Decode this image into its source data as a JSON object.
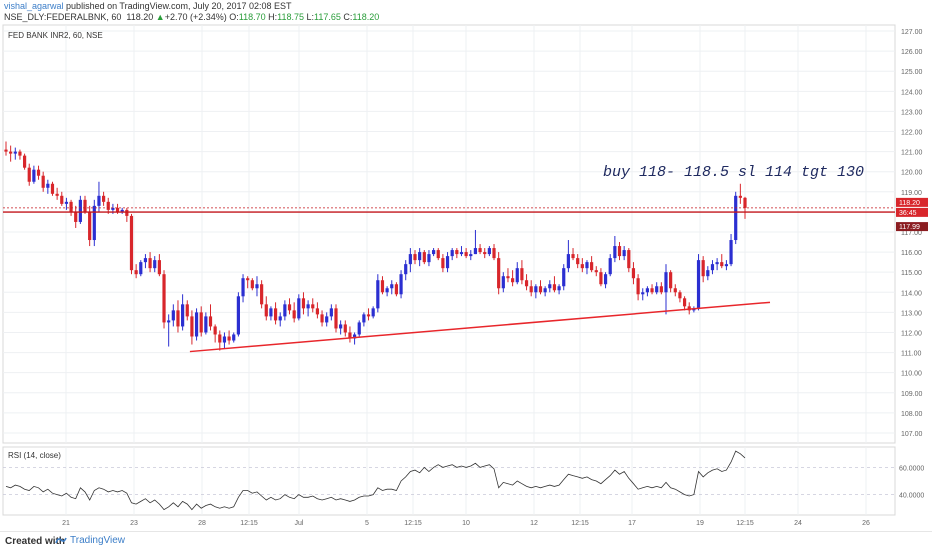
{
  "header": {
    "publisher_user": "vishal_agarwal",
    "published_text": " published on TradingView.com, July 20, 2017 02:08 EST",
    "symbol_line": "NSE_DLY:FEDERALBNK, 60",
    "last_price": "118.20",
    "change_arrow": "▲",
    "change": "+2.70 (+2.34%)",
    "o_label": "O:",
    "o_value": "118.70",
    "h_label": "H:",
    "h_value": "118.75",
    "l_label": "L:",
    "l_value": "117.65",
    "c_label": "C:",
    "c_value": "118.20"
  },
  "footer": {
    "created_with": "Created with",
    "brand": "TradingView"
  },
  "colors": {
    "up": "#2b2fd1",
    "down": "#d8262b",
    "trendline": "#e8262b",
    "resistance": "#c4161c",
    "rsi_line": "#333333",
    "grid": "#eef0f3",
    "price_badge": "#d8262b",
    "price_badge_dark": "#8b1d21"
  },
  "chart_data": [
    {
      "type": "candlestick",
      "title": "FED BANK INR2, 60, NSE",
      "annotation": "buy 118- 118.5 sl 114 tgt 130",
      "ylim": [
        106.5,
        127.3
      ],
      "y_ticks": [
        "127.00",
        "126.00",
        "125.00",
        "124.00",
        "123.00",
        "122.00",
        "121.00",
        "120.00",
        "119.00",
        "118.00",
        "117.00",
        "116.00",
        "115.00",
        "114.00",
        "113.00",
        "112.00",
        "111.00",
        "110.00",
        "109.00",
        "108.00",
        "107.00"
      ],
      "x_ticks": [
        "21",
        "23",
        "28",
        "12:15",
        "Jul",
        "5",
        "12:15",
        "10",
        "12",
        "12:15",
        "17",
        "19",
        "12:15",
        "24",
        "26"
      ],
      "price_labels": {
        "last": "118.20",
        "countdown": "36:45",
        "level": "117.99"
      },
      "lines": {
        "resistance": [
          117.99,
          118.2
        ],
        "support_trendline": {
          "from_index": 0,
          "from_price": 111.05,
          "to_index": 1,
          "to_price": 113.5
        }
      },
      "ohlc": [
        [
          121.1,
          121.5,
          120.8,
          121.0
        ],
        [
          121.0,
          121.3,
          120.5,
          120.9
        ],
        [
          120.9,
          121.2,
          120.6,
          121.0
        ],
        [
          121.0,
          121.1,
          120.6,
          120.8
        ],
        [
          120.8,
          120.9,
          120.1,
          120.2
        ],
        [
          120.2,
          120.4,
          119.3,
          119.5
        ],
        [
          119.5,
          120.3,
          119.4,
          120.1
        ],
        [
          120.1,
          120.3,
          119.6,
          119.8
        ],
        [
          119.8,
          120.0,
          119.0,
          119.2
        ],
        [
          119.2,
          119.6,
          118.9,
          119.4
        ],
        [
          119.4,
          119.5,
          118.8,
          118.9
        ],
        [
          118.9,
          119.2,
          118.6,
          118.8
        ],
        [
          118.8,
          119.0,
          118.3,
          118.4
        ],
        [
          118.4,
          118.7,
          118.1,
          118.5
        ],
        [
          118.5,
          118.6,
          117.8,
          118.0
        ],
        [
          118.0,
          118.3,
          117.2,
          117.5
        ],
        [
          117.5,
          118.8,
          117.4,
          118.6
        ],
        [
          118.6,
          118.8,
          117.9,
          118.0
        ],
        [
          118.0,
          118.3,
          116.3,
          116.6
        ],
        [
          116.6,
          118.6,
          116.3,
          118.3
        ],
        [
          118.3,
          119.5,
          118.0,
          118.8
        ],
        [
          118.8,
          119.0,
          118.3,
          118.5
        ],
        [
          118.5,
          118.7,
          117.9,
          118.1
        ],
        [
          118.1,
          118.4,
          117.9,
          118.2
        ],
        [
          118.2,
          118.4,
          117.9,
          118.0
        ],
        [
          118.0,
          118.2,
          117.9,
          118.1
        ],
        [
          118.1,
          118.2,
          117.5,
          117.8
        ],
        [
          117.8,
          117.9,
          114.9,
          115.1
        ],
        [
          115.1,
          115.4,
          114.7,
          114.9
        ],
        [
          114.9,
          115.6,
          114.8,
          115.5
        ],
        [
          115.5,
          115.9,
          115.2,
          115.7
        ],
        [
          115.7,
          116.0,
          115.0,
          115.2
        ],
        [
          115.2,
          115.8,
          115.0,
          115.6
        ],
        [
          115.6,
          115.9,
          114.8,
          114.9
        ],
        [
          114.9,
          115.1,
          112.2,
          112.5
        ],
        [
          112.5,
          112.9,
          111.3,
          112.6
        ],
        [
          112.6,
          113.4,
          112.3,
          113.1
        ],
        [
          113.1,
          113.6,
          112.0,
          112.3
        ],
        [
          112.3,
          113.9,
          112.1,
          113.4
        ],
        [
          113.4,
          113.6,
          112.6,
          112.8
        ],
        [
          112.8,
          113.1,
          111.4,
          111.8
        ],
        [
          111.8,
          113.2,
          111.6,
          113.0
        ],
        [
          113.0,
          113.3,
          111.8,
          112.0
        ],
        [
          112.0,
          113.0,
          111.9,
          112.8
        ],
        [
          112.8,
          113.4,
          112.1,
          112.3
        ],
        [
          112.3,
          112.4,
          111.5,
          111.9
        ],
        [
          111.9,
          112.1,
          111.1,
          111.5
        ],
        [
          111.5,
          112.0,
          111.2,
          111.8
        ],
        [
          111.8,
          112.1,
          111.4,
          111.6
        ],
        [
          111.6,
          112.0,
          111.5,
          111.9
        ],
        [
          111.9,
          114.0,
          111.8,
          113.8
        ],
        [
          113.8,
          114.9,
          113.5,
          114.7
        ],
        [
          114.7,
          114.8,
          114.2,
          114.6
        ],
        [
          114.6,
          114.7,
          114.1,
          114.2
        ],
        [
          114.2,
          114.8,
          113.8,
          114.4
        ],
        [
          114.4,
          114.6,
          113.2,
          113.4
        ],
        [
          113.4,
          113.8,
          112.6,
          112.8
        ],
        [
          112.8,
          113.3,
          112.6,
          113.2
        ],
        [
          113.2,
          113.5,
          112.4,
          112.6
        ],
        [
          112.6,
          113.0,
          112.3,
          112.8
        ],
        [
          112.8,
          113.6,
          112.6,
          113.4
        ],
        [
          113.4,
          113.7,
          112.9,
          113.1
        ],
        [
          113.1,
          113.5,
          112.5,
          112.7
        ],
        [
          112.7,
          113.9,
          112.6,
          113.7
        ],
        [
          113.7,
          114.0,
          112.9,
          113.2
        ],
        [
          113.2,
          113.6,
          112.8,
          113.4
        ],
        [
          113.4,
          113.7,
          113.0,
          113.2
        ],
        [
          113.2,
          113.5,
          112.7,
          112.9
        ],
        [
          112.9,
          113.1,
          112.3,
          112.5
        ],
        [
          112.5,
          113.0,
          112.3,
          112.8
        ],
        [
          112.8,
          113.4,
          112.6,
          113.2
        ],
        [
          113.2,
          113.4,
          112.0,
          112.2
        ],
        [
          112.2,
          112.6,
          111.9,
          112.4
        ],
        [
          112.4,
          112.6,
          111.8,
          112.0
        ],
        [
          112.0,
          112.3,
          111.5,
          111.7
        ],
        [
          111.7,
          112.0,
          111.4,
          111.9
        ],
        [
          111.9,
          112.6,
          111.8,
          112.5
        ],
        [
          112.5,
          113.0,
          112.3,
          112.9
        ],
        [
          112.9,
          113.2,
          112.6,
          112.8
        ],
        [
          112.8,
          113.3,
          112.7,
          113.2
        ],
        [
          113.2,
          114.9,
          113.0,
          114.6
        ],
        [
          114.6,
          114.8,
          113.9,
          114.0
        ],
        [
          114.0,
          114.3,
          113.8,
          114.2
        ],
        [
          114.2,
          114.6,
          113.9,
          114.4
        ],
        [
          114.4,
          114.5,
          113.8,
          113.9
        ],
        [
          113.9,
          115.1,
          113.7,
          114.9
        ],
        [
          114.9,
          115.6,
          114.6,
          115.4
        ],
        [
          115.4,
          116.2,
          115.0,
          115.9
        ],
        [
          115.9,
          116.1,
          115.4,
          115.6
        ],
        [
          115.6,
          116.2,
          115.3,
          116.0
        ],
        [
          116.0,
          116.1,
          115.4,
          115.5
        ],
        [
          115.5,
          116.1,
          115.3,
          115.9
        ],
        [
          115.9,
          116.2,
          115.8,
          116.1
        ],
        [
          116.1,
          116.2,
          115.6,
          115.7
        ],
        [
          115.7,
          115.9,
          115.0,
          115.2
        ],
        [
          115.2,
          116.0,
          115.0,
          115.8
        ],
        [
          115.8,
          116.2,
          115.6,
          116.1
        ],
        [
          116.1,
          116.2,
          115.7,
          115.9
        ],
        [
          115.9,
          116.3,
          115.8,
          116.0
        ],
        [
          116.0,
          116.2,
          115.7,
          115.8
        ],
        [
          115.8,
          116.1,
          115.6,
          115.9
        ],
        [
          115.9,
          117.1,
          115.9,
          116.2
        ],
        [
          116.2,
          116.4,
          115.9,
          116.0
        ],
        [
          116.0,
          116.2,
          115.7,
          115.9
        ],
        [
          115.9,
          116.3,
          115.8,
          116.2
        ],
        [
          116.2,
          116.4,
          115.6,
          115.7
        ],
        [
          115.7,
          116.0,
          113.9,
          114.2
        ],
        [
          114.2,
          115.0,
          114.0,
          114.8
        ],
        [
          114.8,
          115.2,
          114.5,
          114.7
        ],
        [
          114.7,
          115.1,
          114.3,
          114.5
        ],
        [
          114.5,
          115.5,
          114.4,
          115.2
        ],
        [
          115.2,
          115.6,
          114.4,
          114.6
        ],
        [
          114.6,
          114.9,
          114.1,
          114.3
        ],
        [
          114.3,
          114.6,
          113.8,
          114.0
        ],
        [
          114.0,
          114.4,
          113.7,
          114.3
        ],
        [
          114.3,
          114.6,
          113.9,
          114.0
        ],
        [
          114.0,
          114.3,
          113.8,
          114.2
        ],
        [
          114.2,
          114.6,
          114.0,
          114.4
        ],
        [
          114.4,
          114.8,
          114.0,
          114.1
        ],
        [
          114.1,
          114.4,
          113.9,
          114.3
        ],
        [
          114.3,
          115.4,
          114.1,
          115.2
        ],
        [
          115.2,
          116.6,
          115.0,
          115.9
        ],
        [
          115.9,
          116.2,
          115.6,
          115.7
        ],
        [
          115.7,
          115.9,
          115.2,
          115.4
        ],
        [
          115.4,
          115.7,
          115.0,
          115.2
        ],
        [
          115.2,
          115.6,
          114.9,
          115.5
        ],
        [
          115.5,
          115.8,
          115.0,
          115.1
        ],
        [
          115.1,
          115.3,
          114.8,
          115.0
        ],
        [
          115.0,
          115.2,
          114.3,
          114.4
        ],
        [
          114.4,
          115.0,
          114.2,
          114.9
        ],
        [
          114.9,
          115.9,
          114.8,
          115.7
        ],
        [
          115.7,
          116.8,
          115.5,
          116.3
        ],
        [
          116.3,
          116.5,
          115.6,
          115.8
        ],
        [
          115.8,
          116.3,
          115.6,
          116.1
        ],
        [
          116.1,
          116.2,
          115.0,
          115.2
        ],
        [
          115.2,
          115.5,
          114.4,
          114.7
        ],
        [
          114.7,
          114.9,
          113.6,
          113.9
        ],
        [
          113.9,
          114.2,
          113.6,
          114.0
        ],
        [
          114.0,
          114.3,
          113.8,
          114.2
        ],
        [
          114.2,
          114.4,
          113.9,
          114.0
        ],
        [
          114.0,
          114.5,
          113.9,
          114.3
        ],
        [
          114.3,
          114.5,
          113.9,
          114.0
        ],
        [
          114.0,
          115.4,
          112.9,
          115.0
        ],
        [
          115.0,
          115.1,
          114.0,
          114.2
        ],
        [
          114.2,
          114.4,
          113.8,
          114.0
        ],
        [
          114.0,
          114.1,
          113.5,
          113.7
        ],
        [
          113.7,
          113.8,
          113.1,
          113.3
        ],
        [
          113.3,
          113.5,
          112.9,
          113.1
        ],
        [
          113.1,
          113.3,
          113.0,
          113.2
        ],
        [
          113.2,
          115.9,
          113.1,
          115.6
        ],
        [
          115.6,
          115.8,
          114.5,
          114.8
        ],
        [
          114.8,
          115.3,
          114.6,
          115.1
        ],
        [
          115.1,
          115.6,
          114.9,
          115.4
        ],
        [
          115.4,
          115.7,
          115.1,
          115.5
        ],
        [
          115.5,
          115.9,
          115.2,
          115.3
        ],
        [
          115.3,
          115.6,
          115.1,
          115.4
        ],
        [
          115.4,
          116.9,
          115.3,
          116.6
        ],
        [
          116.6,
          119.0,
          116.4,
          118.8
        ],
        [
          118.8,
          119.4,
          118.4,
          118.7
        ],
        [
          118.7,
          118.75,
          117.65,
          118.2
        ]
      ]
    },
    {
      "type": "line",
      "title": "RSI (14, close)",
      "y_ticks": [
        "60.0000",
        "40.0000"
      ],
      "ylim": [
        25,
        75
      ],
      "values": [
        46,
        45,
        47,
        46,
        44,
        43,
        46,
        45,
        42,
        44,
        41,
        40,
        39,
        41,
        38,
        37,
        45,
        42,
        36,
        43,
        45,
        44,
        42,
        43,
        42,
        43,
        41,
        34,
        33,
        35,
        37,
        34,
        36,
        33,
        29,
        31,
        34,
        31,
        35,
        33,
        29,
        33,
        30,
        32,
        33,
        31,
        30,
        31,
        30,
        31,
        38,
        43,
        43,
        41,
        42,
        39,
        36,
        38,
        36,
        37,
        40,
        38,
        37,
        40,
        38,
        38,
        39,
        37,
        36,
        37,
        38,
        36,
        37,
        36,
        35,
        36,
        38,
        39,
        39,
        40,
        45,
        43,
        44,
        44,
        43,
        50,
        53,
        57,
        58,
        56,
        60,
        57,
        60,
        62,
        60,
        61,
        62,
        60,
        61,
        60,
        61,
        63,
        60,
        61,
        62,
        59,
        45,
        49,
        48,
        47,
        50,
        48,
        46,
        45,
        46,
        45,
        46,
        47,
        46,
        47,
        51,
        55,
        54,
        53,
        52,
        53,
        51,
        50,
        48,
        51,
        54,
        58,
        55,
        57,
        52,
        48,
        44,
        45,
        46,
        45,
        46,
        45,
        49,
        45,
        44,
        42,
        40,
        39,
        40,
        57,
        53,
        56,
        58,
        59,
        57,
        58,
        64,
        72,
        70,
        67
      ]
    }
  ]
}
